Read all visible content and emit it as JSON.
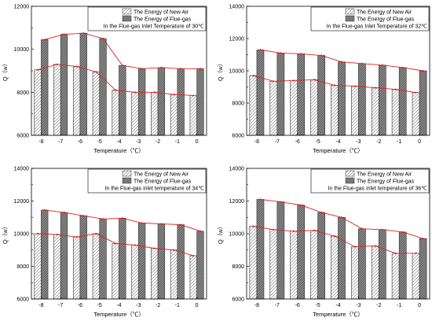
{
  "chart_data": [
    {
      "type": "bar",
      "categories": [
        "-8",
        "-7",
        "-6",
        "-5",
        "-4",
        "-3",
        "-2",
        "-1",
        "0"
      ],
      "xlabel": "Temperature（℃）",
      "ylabel": "Q（w）",
      "ylim": [
        6000,
        12000
      ],
      "yticks": [
        6000,
        8000,
        10000,
        12000
      ],
      "legend_position": "top-right",
      "legend_note": "In the Flue-gas Inlet Temperature of 30℃",
      "series": [
        {
          "name": "The Energy of New Air",
          "values": [
            9050,
            9300,
            9200,
            8950,
            8100,
            8000,
            8000,
            7900,
            7850
          ]
        },
        {
          "name": "The Energy of Flue-gas",
          "values": [
            10450,
            10700,
            10750,
            10500,
            9250,
            9100,
            9150,
            9100,
            9100
          ]
        }
      ]
    },
    {
      "type": "bar",
      "categories": [
        "-8",
        "-7",
        "-6",
        "-5",
        "-4",
        "-3",
        "-2",
        "-1",
        "0"
      ],
      "xlabel": "Temperature（℃）",
      "ylabel": "Q（w）",
      "ylim": [
        6000,
        14000
      ],
      "yticks": [
        6000,
        8000,
        10000,
        12000,
        14000
      ],
      "legend_position": "top-right",
      "legend_note": "In the Flue-gas Inlet Temperature of 32℃",
      "series": [
        {
          "name": "The Energy of New Air",
          "values": [
            9700,
            9350,
            9400,
            9450,
            9100,
            9050,
            8950,
            8850,
            8650
          ]
        },
        {
          "name": "The Energy of Flue-gas",
          "values": [
            11300,
            11100,
            11050,
            10950,
            10550,
            10450,
            10350,
            10200,
            10000
          ]
        }
      ]
    },
    {
      "type": "bar",
      "categories": [
        "-8",
        "-7",
        "-6",
        "-5",
        "-4",
        "-3",
        "-2",
        "-1",
        "0"
      ],
      "xlabel": "Temperature（℃）",
      "ylabel": "Q（w）",
      "ylim": [
        6000,
        14000
      ],
      "yticks": [
        6000,
        8000,
        10000,
        12000,
        14000
      ],
      "legend_position": "top-right",
      "legend_note": "In the Flue-gas inlet temperature of 34℃",
      "series": [
        {
          "name": "The Energy of New Air",
          "values": [
            10000,
            9950,
            9800,
            10000,
            9400,
            9300,
            9100,
            9000,
            8650
          ]
        },
        {
          "name": "The Energy of Flue-gas",
          "values": [
            11450,
            11300,
            11100,
            10900,
            10950,
            10650,
            10600,
            10550,
            10150
          ]
        }
      ]
    },
    {
      "type": "bar",
      "categories": [
        "-8",
        "-7",
        "-6",
        "-5",
        "-4",
        "-3",
        "-2",
        "-1",
        "0"
      ],
      "xlabel": "Temperature（℃）",
      "ylabel": "Q（w）",
      "ylim": [
        6000,
        14000
      ],
      "yticks": [
        6000,
        8000,
        10000,
        12000,
        14000
      ],
      "legend_position": "top-right",
      "legend_note": "In the Flue-gas inlet temperature of 36℃",
      "series": [
        {
          "name": "The Energy of New Air",
          "values": [
            10450,
            10250,
            10150,
            10200,
            9850,
            9200,
            9250,
            8800,
            8800
          ]
        },
        {
          "name": "The Energy of Flue-gas",
          "values": [
            12100,
            11950,
            11750,
            11300,
            11000,
            10300,
            10250,
            10100,
            9700
          ]
        }
      ]
    }
  ]
}
